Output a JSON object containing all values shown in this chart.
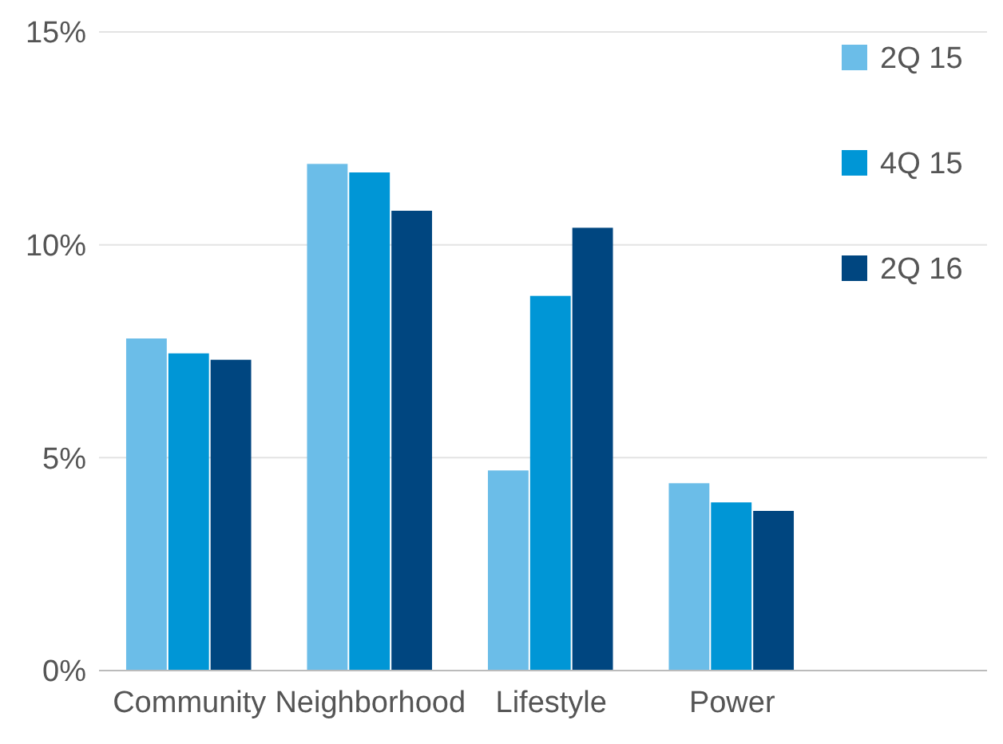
{
  "chart_data": {
    "type": "bar",
    "categories": [
      "Community",
      "Neighborhood",
      "Lifestyle",
      "Power"
    ],
    "series": [
      {
        "name": "2Q 15",
        "color": "#6bbde8",
        "values": [
          7.8,
          11.9,
          4.7,
          4.4
        ]
      },
      {
        "name": "4Q 15",
        "color": "#0096d6",
        "values": [
          7.45,
          11.7,
          8.8,
          3.95
        ]
      },
      {
        "name": "2Q 16",
        "color": "#004680",
        "values": [
          7.3,
          10.8,
          10.4,
          3.75
        ]
      }
    ],
    "ylim": [
      0,
      15
    ],
    "yticks": [
      {
        "value": 0,
        "label": "0%"
      },
      {
        "value": 5,
        "label": "5%"
      },
      {
        "value": 10,
        "label": "10%"
      },
      {
        "value": 15,
        "label": "15%"
      }
    ],
    "grid": "y",
    "legend": "top right"
  }
}
